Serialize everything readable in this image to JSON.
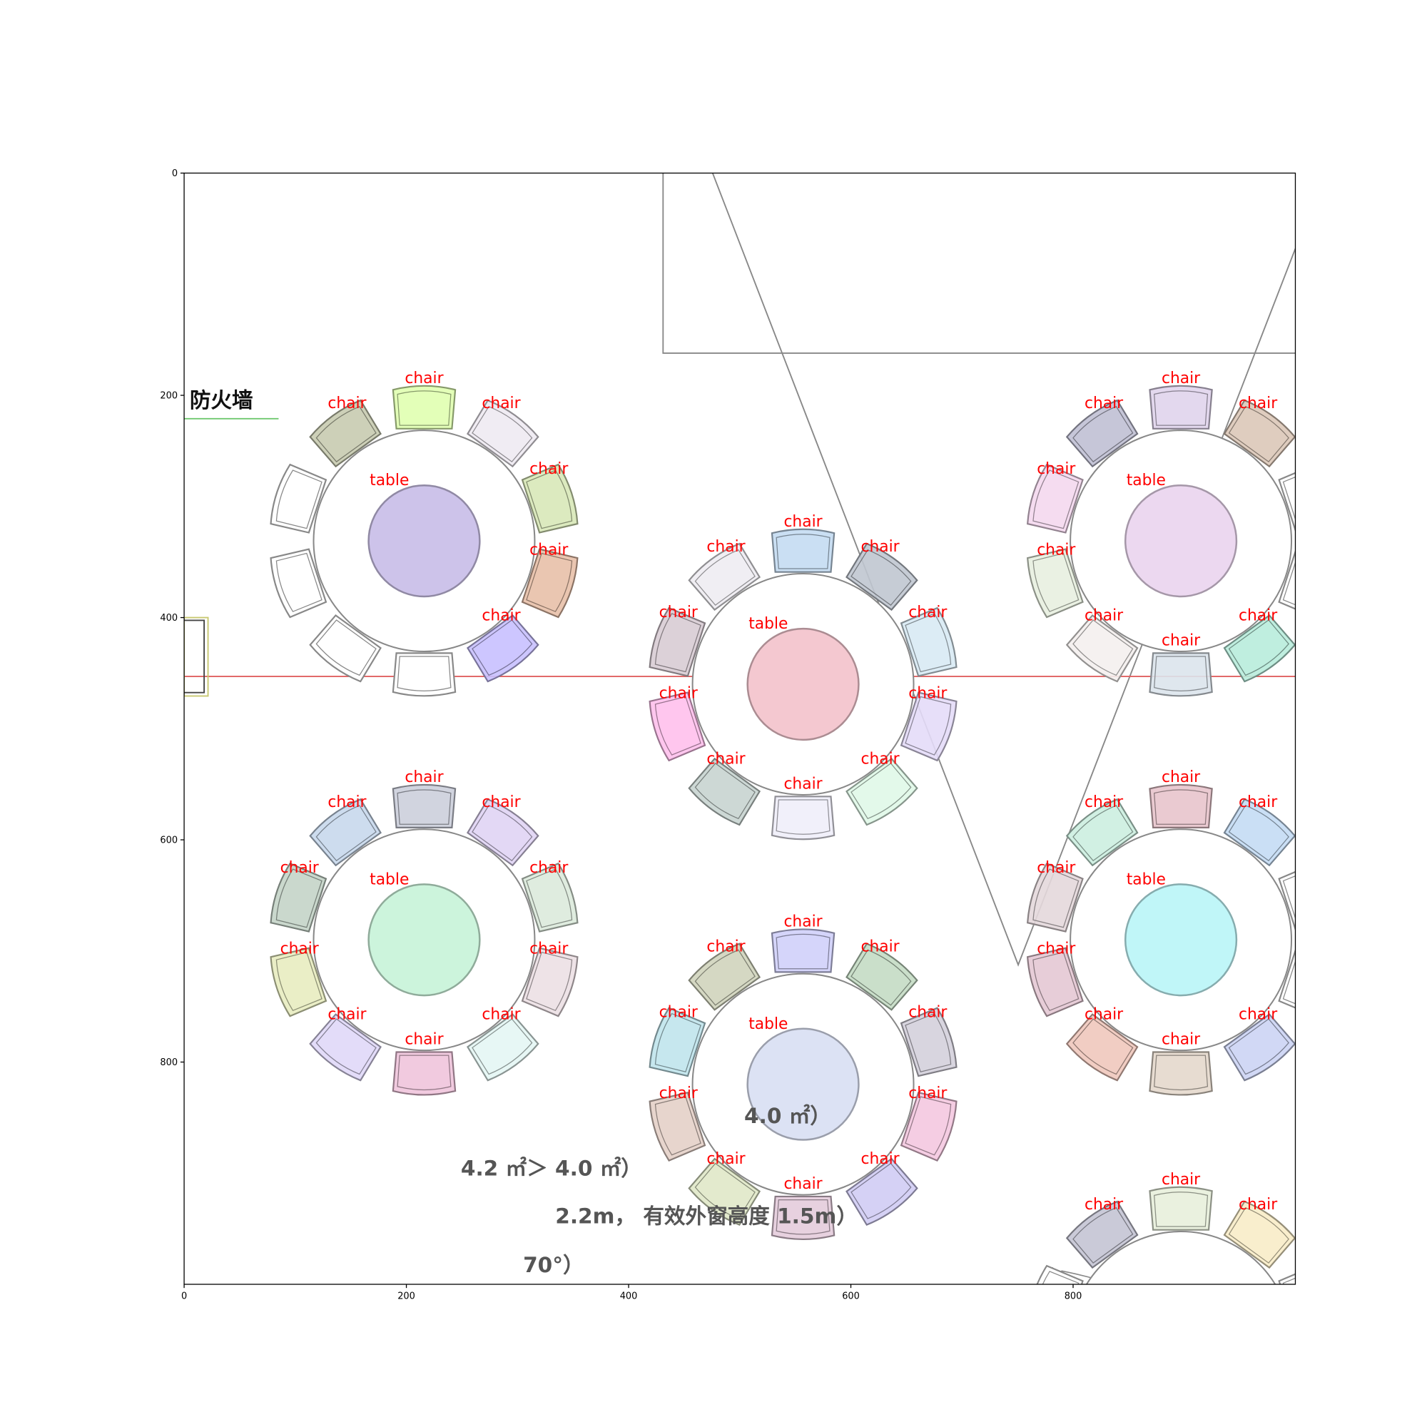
{
  "axes": {
    "xlim": [
      0,
      1000
    ],
    "ylim": [
      1000,
      0
    ],
    "xticks": [
      0,
      200,
      400,
      600,
      800
    ],
    "yticks": [
      0,
      200,
      400,
      600,
      800
    ]
  },
  "plan_texts": {
    "firewall": "防火墙",
    "notes": [
      "4.0 ㎡）",
      "4.2 ㎡＞ 4.0 ㎡）",
      "2.2m， 有效外窗高度 1.5m）",
      "70°）"
    ]
  },
  "tables": [
    {
      "label": "table",
      "color": "#cdc3ea",
      "chairs": [
        {
          "label": "chair",
          "color": "#c8cbb0"
        },
        {
          "label": "chair",
          "color": "#e0ffb0"
        },
        {
          "label": "chair",
          "color": "#eeeaf2"
        },
        {
          "label": "chair",
          "color": "#d8e8b8"
        },
        {
          "label": "chair",
          "color": "#e8c0a8"
        },
        {
          "label": "chair",
          "color": "#c8c0ff"
        }
      ]
    },
    {
      "label": "table",
      "color": "#f4c8d0",
      "chairs": [
        {
          "label": "chair",
          "color": "#c4dcf2"
        },
        {
          "label": "chair",
          "color": "#c0c6d0"
        },
        {
          "label": "chair",
          "color": "#d8eaf4"
        },
        {
          "label": "chair",
          "color": "#e4dcf8"
        },
        {
          "label": "chair",
          "color": "#e0f8e8"
        },
        {
          "label": "chair",
          "color": "#f0eefa"
        },
        {
          "label": "chair",
          "color": "#c8d4d0"
        },
        {
          "label": "chair",
          "color": "#ffc0ec"
        },
        {
          "label": "chair",
          "color": "#d8ccd4"
        },
        {
          "label": "chair",
          "color": "#eeecf2"
        }
      ]
    },
    {
      "label": "table",
      "color": "#ecd8f0",
      "chairs": [
        {
          "label": "chair",
          "color": "#c0c0d4"
        },
        {
          "label": "chair",
          "color": "#e0d4ec"
        },
        {
          "label": "chair",
          "color": "#dcc8b8"
        },
        {
          "label": "chair",
          "color": "#b8ecdc"
        },
        {
          "label": "chair",
          "color": "#dce4ec"
        },
        {
          "label": "chair",
          "color": "#f4f0ee"
        },
        {
          "label": "chair",
          "color": "#e8f0e0"
        },
        {
          "label": "chair",
          "color": "#f4d8ee"
        }
      ]
    },
    {
      "label": "table",
      "color": "#ccf4dc",
      "chairs": [
        {
          "label": "chair",
          "color": "#c8d8ec"
        },
        {
          "label": "chair",
          "color": "#cccfdc"
        },
        {
          "label": "chair",
          "color": "#e0d4f4"
        },
        {
          "label": "chair",
          "color": "#dceadc"
        },
        {
          "label": "chair",
          "color": "#ece0e4"
        },
        {
          "label": "chair",
          "color": "#e4f6f4"
        },
        {
          "label": "chair",
          "color": "#f0c4dc"
        },
        {
          "label": "chair",
          "color": "#e0d8f8"
        },
        {
          "label": "chair",
          "color": "#e8ecc0"
        },
        {
          "label": "chair",
          "color": "#c4d4c8"
        }
      ]
    },
    {
      "label": "table",
      "color": "#dce2f4",
      "chairs": [
        {
          "label": "chair",
          "color": "#d0d0fa"
        },
        {
          "label": "chair",
          "color": "#c4dcc4"
        },
        {
          "label": "chair",
          "color": "#d4d0dc"
        },
        {
          "label": "chair",
          "color": "#f4c8e0"
        },
        {
          "label": "chair",
          "color": "#d0ccf4"
        },
        {
          "label": "chair",
          "color": "#e4ccdc"
        },
        {
          "label": "chair",
          "color": "#e0e8c8"
        },
        {
          "label": "chair",
          "color": "#e4d0c8"
        },
        {
          "label": "chair",
          "color": "#c0e4ec"
        },
        {
          "label": "chair",
          "color": "#d0d4bc"
        }
      ]
    },
    {
      "label": "table",
      "color": "#c0f6f8",
      "chairs": [
        {
          "label": "chair",
          "color": "#cceee0"
        },
        {
          "label": "chair",
          "color": "#e8c4cc"
        },
        {
          "label": "chair",
          "color": "#c4dcf4"
        },
        {
          "label": "chair",
          "color": "#ccd4f4"
        },
        {
          "label": "chair",
          "color": "#e4d8cc"
        },
        {
          "label": "chair",
          "color": "#f0c8bc"
        },
        {
          "label": "chair",
          "color": "#e4c8d4"
        },
        {
          "label": "chair",
          "color": "#e4d8dc"
        }
      ]
    },
    {
      "chairs": [
        {
          "label": "chair",
          "color": "#c4c4d4"
        },
        {
          "label": "chair",
          "color": "#e8f0dc"
        },
        {
          "label": "chair",
          "color": "#f8ecc8"
        }
      ]
    }
  ]
}
